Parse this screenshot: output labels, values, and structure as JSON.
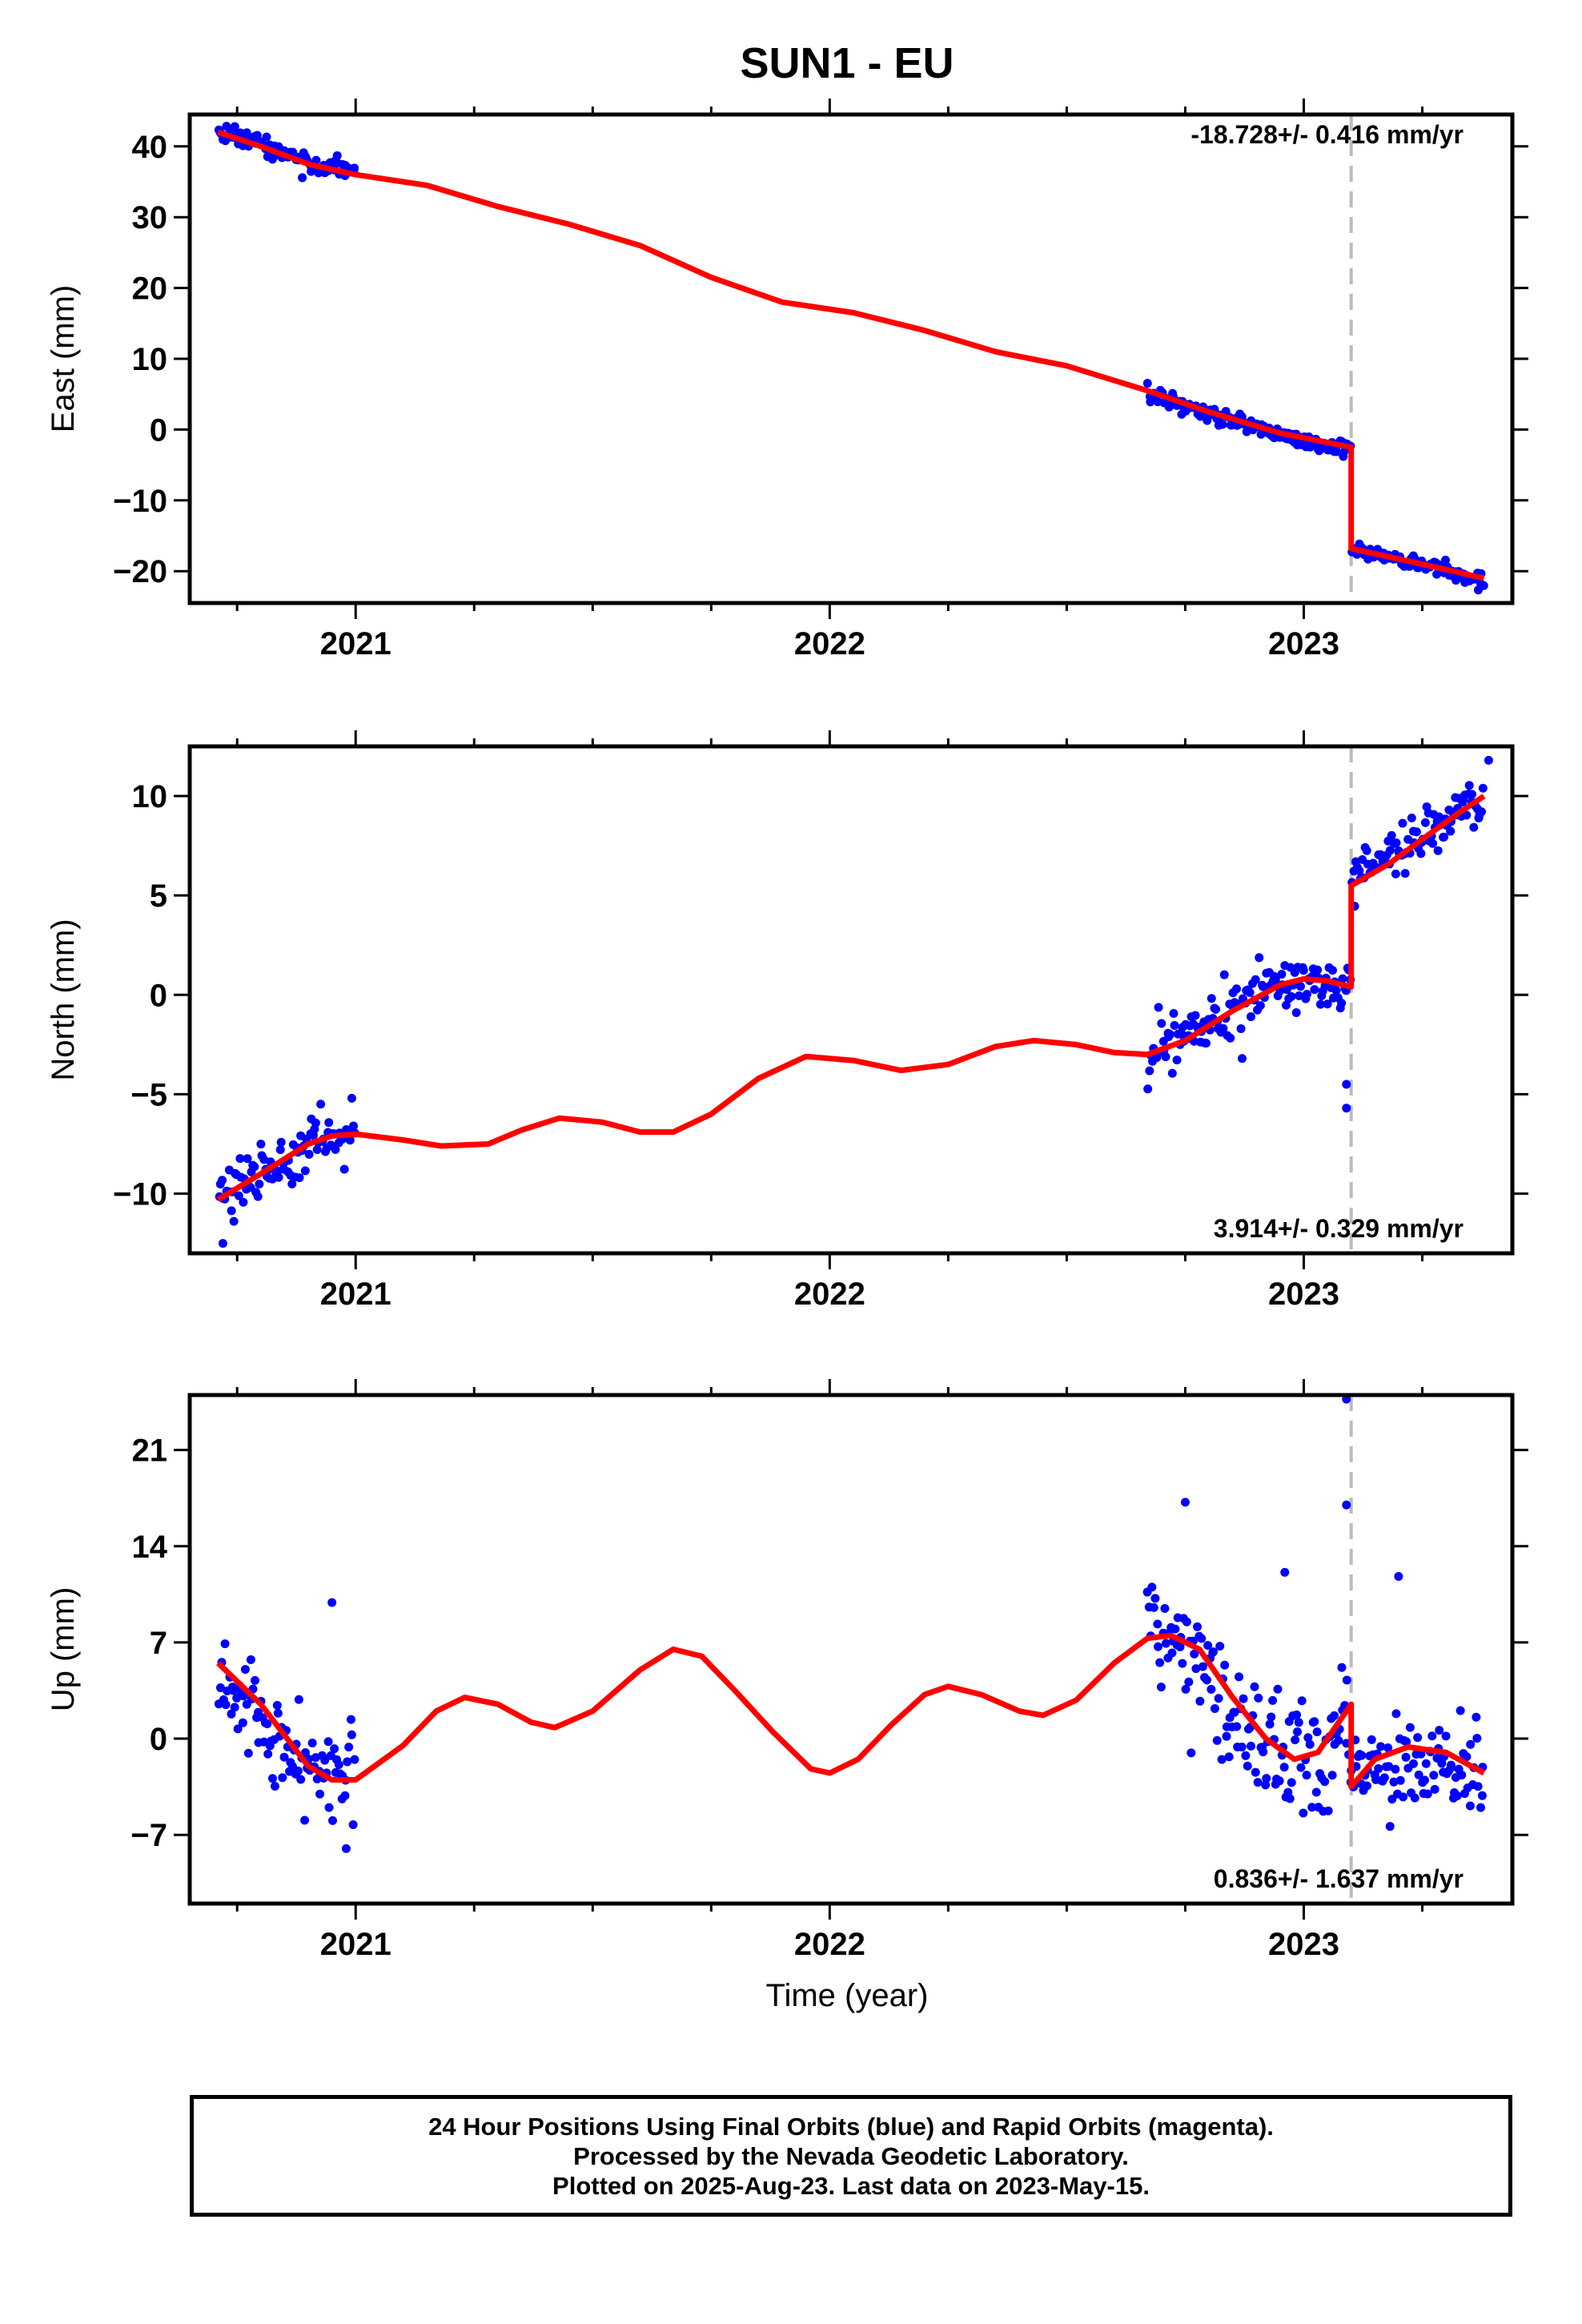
{
  "chart_data": {
    "title": "SUN1 - EU",
    "type": "scatter",
    "xlabel": "Time (year)",
    "xlim": [
      2020.65,
      2023.44
    ],
    "xticks": [
      "2021",
      "2022",
      "2023"
    ],
    "step_epoch": 2023.1,
    "panels": [
      {
        "ylabel": "East (mm)",
        "ylim": [
          -24.5,
          44.5
        ],
        "yticks": [
          {
            "value": 40,
            "label": "40"
          },
          {
            "value": 30,
            "label": "30"
          },
          {
            "value": 20,
            "label": "20"
          },
          {
            "value": 10,
            "label": "10"
          },
          {
            "value": 0,
            "label": "0"
          },
          {
            "value": -10,
            "label": "−10"
          },
          {
            "value": -20,
            "label": "−20"
          }
        ],
        "rate_text": "-18.728+/- 0.416 mm/yr",
        "rate_position": "top-right",
        "series": [
          {
            "kind": "points",
            "color": "#0000ff",
            "segments": [
              {
                "x_start": 2020.71,
                "x_end": 2021.0,
                "trend": [
                  [
                    2020.71,
                    42.6
                  ],
                  [
                    2020.8,
                    40.5
                  ],
                  [
                    2020.9,
                    37.5
                  ],
                  [
                    2021.0,
                    36.5
                  ]
                ],
                "noise": 1.3
              },
              {
                "x_start": 2022.67,
                "x_end": 2023.1,
                "trend": [
                  [
                    2022.67,
                    5.0
                  ],
                  [
                    2022.8,
                    2.3
                  ],
                  [
                    2022.95,
                    -0.8
                  ],
                  [
                    2023.1,
                    -2.8
                  ]
                ],
                "noise": 1.1
              },
              {
                "x_start": 2023.1,
                "x_end": 2023.38,
                "trend": [
                  [
                    2023.1,
                    -16.8
                  ],
                  [
                    2023.25,
                    -19.2
                  ],
                  [
                    2023.38,
                    -21.5
                  ]
                ],
                "noise": 1.1
              }
            ],
            "outliers": []
          },
          {
            "kind": "model",
            "color": "#ff0000",
            "points": [
              [
                2020.71,
                42.0
              ],
              [
                2020.8,
                40.0
              ],
              [
                2020.9,
                37.5
              ],
              [
                2021.0,
                36.0
              ],
              [
                2021.15,
                34.5
              ],
              [
                2021.3,
                31.5
              ],
              [
                2021.45,
                29.0
              ],
              [
                2021.6,
                26.0
              ],
              [
                2021.75,
                21.5
              ],
              [
                2021.9,
                18.0
              ],
              [
                2022.05,
                16.5
              ],
              [
                2022.2,
                14.0
              ],
              [
                2022.35,
                11.0
              ],
              [
                2022.5,
                9.0
              ],
              [
                2022.67,
                5.5
              ],
              [
                2022.8,
                2.5
              ],
              [
                2022.95,
                -0.5
              ],
              [
                2023.1,
                -2.5
              ],
              [
                2023.1,
                -16.8
              ],
              [
                2023.25,
                -19.0
              ],
              [
                2023.38,
                -21.0
              ]
            ]
          }
        ]
      },
      {
        "ylabel": "North (mm)",
        "ylim": [
          -13.0,
          12.5
        ],
        "yticks": [
          {
            "value": 10,
            "label": "10"
          },
          {
            "value": 5,
            "label": "5"
          },
          {
            "value": 0,
            "label": "0"
          },
          {
            "value": -5,
            "label": "−5"
          },
          {
            "value": -10,
            "label": "−10"
          }
        ],
        "rate_text": "3.914+/- 0.329 mm/yr",
        "rate_position": "bottom-right",
        "series": [
          {
            "kind": "points",
            "color": "#0000ff",
            "segments": [
              {
                "x_start": 2020.71,
                "x_end": 2021.0,
                "trend": [
                  [
                    2020.71,
                    -10.2
                  ],
                  [
                    2020.8,
                    -9.0
                  ],
                  [
                    2020.9,
                    -7.5
                  ],
                  [
                    2021.0,
                    -6.8
                  ]
                ],
                "noise": 1.3
              },
              {
                "x_start": 2022.67,
                "x_end": 2023.1,
                "trend": [
                  [
                    2022.67,
                    -2.9
                  ],
                  [
                    2022.8,
                    -1.2
                  ],
                  [
                    2022.95,
                    0.5
                  ],
                  [
                    2023.1,
                    0.5
                  ]
                ],
                "noise": 1.3
              },
              {
                "x_start": 2023.1,
                "x_end": 2023.38,
                "trend": [
                  [
                    2023.1,
                    5.6
                  ],
                  [
                    2023.25,
                    8.0
                  ],
                  [
                    2023.38,
                    10.1
                  ]
                ],
                "noise": 1.3
              }
            ],
            "outliers": [
              [
                2023.09,
                -4.5
              ],
              [
                2023.09,
                -5.7
              ],
              [
                2020.72,
                -12.5
              ],
              [
                2023.39,
                11.8
              ],
              [
                2022.87,
                -3.2
              ]
            ]
          },
          {
            "kind": "model",
            "color": "#ff0000",
            "points": [
              [
                2020.71,
                -10.3
              ],
              [
                2020.8,
                -9.0
              ],
              [
                2020.9,
                -7.5
              ],
              [
                2020.95,
                -7.1
              ],
              [
                2021.0,
                -7.0
              ],
              [
                2021.1,
                -7.3
              ],
              [
                2021.18,
                -7.6
              ],
              [
                2021.28,
                -7.5
              ],
              [
                2021.35,
                -6.8
              ],
              [
                2021.43,
                -6.2
              ],
              [
                2021.52,
                -6.4
              ],
              [
                2021.6,
                -6.9
              ],
              [
                2021.67,
                -6.9
              ],
              [
                2021.75,
                -6.0
              ],
              [
                2021.85,
                -4.2
              ],
              [
                2021.95,
                -3.1
              ],
              [
                2022.05,
                -3.3
              ],
              [
                2022.15,
                -3.8
              ],
              [
                2022.25,
                -3.5
              ],
              [
                2022.35,
                -2.6
              ],
              [
                2022.43,
                -2.3
              ],
              [
                2022.52,
                -2.5
              ],
              [
                2022.6,
                -2.9
              ],
              [
                2022.67,
                -3.0
              ],
              [
                2022.75,
                -2.3
              ],
              [
                2022.85,
                -0.8
              ],
              [
                2022.95,
                0.5
              ],
              [
                2023.0,
                0.8
              ],
              [
                2023.05,
                0.7
              ],
              [
                2023.1,
                0.4
              ],
              [
                2023.1,
                5.5
              ],
              [
                2023.18,
                6.6
              ],
              [
                2023.26,
                8.0
              ],
              [
                2023.33,
                9.2
              ],
              [
                2023.38,
                10.0
              ]
            ]
          }
        ]
      },
      {
        "ylabel": "Up (mm)",
        "ylim": [
          -12.0,
          25.0
        ],
        "yticks": [
          {
            "value": 21,
            "label": "21"
          },
          {
            "value": 14,
            "label": "14"
          },
          {
            "value": 7,
            "label": "7"
          },
          {
            "value": 0,
            "label": "0"
          },
          {
            "value": -7,
            "label": "−7"
          }
        ],
        "rate_text": "0.836+/- 1.637 mm/yr",
        "rate_position": "bottom-right",
        "series": [
          {
            "kind": "points",
            "color": "#0000ff",
            "segments": [
              {
                "x_start": 2020.71,
                "x_end": 2021.0,
                "trend": [
                  [
                    2020.71,
                    5.0
                  ],
                  [
                    2020.8,
                    2.0
                  ],
                  [
                    2020.9,
                    -2.5
                  ],
                  [
                    2021.0,
                    -2.5
                  ]
                ],
                "noise": 3.2
              },
              {
                "x_start": 2022.67,
                "x_end": 2023.1,
                "trend": [
                  [
                    2022.67,
                    9.0
                  ],
                  [
                    2022.75,
                    7.0
                  ],
                  [
                    2022.85,
                    0.5
                  ],
                  [
                    2023.0,
                    -2.0
                  ],
                  [
                    2023.1,
                    0.0
                  ]
                ],
                "noise": 4.0
              },
              {
                "x_start": 2023.1,
                "x_end": 2023.38,
                "trend": [
                  [
                    2023.1,
                    -2.5
                  ],
                  [
                    2023.25,
                    -1.0
                  ],
                  [
                    2023.38,
                    -2.5
                  ]
                ],
                "noise": 3.2
              }
            ],
            "outliers": [
              [
                2023.09,
                24.7
              ],
              [
                2023.09,
                17.0
              ],
              [
                2022.75,
                17.2
              ],
              [
                2020.95,
                9.9
              ],
              [
                2020.98,
                -8.0
              ],
              [
                2022.96,
                12.1
              ],
              [
                2023.2,
                11.8
              ]
            ]
          },
          {
            "kind": "model",
            "color": "#ff0000",
            "points": [
              [
                2020.71,
                5.5
              ],
              [
                2020.8,
                2.5
              ],
              [
                2020.9,
                -2.0
              ],
              [
                2020.95,
                -3.0
              ],
              [
                2021.0,
                -3.0
              ],
              [
                2021.1,
                -0.5
              ],
              [
                2021.17,
                2.0
              ],
              [
                2021.23,
                3.0
              ],
              [
                2021.3,
                2.5
              ],
              [
                2021.37,
                1.2
              ],
              [
                2021.42,
                0.8
              ],
              [
                2021.5,
                2.0
              ],
              [
                2021.6,
                5.0
              ],
              [
                2021.67,
                6.5
              ],
              [
                2021.73,
                6.0
              ],
              [
                2021.8,
                3.5
              ],
              [
                2021.88,
                0.5
              ],
              [
                2021.96,
                -2.2
              ],
              [
                2022.0,
                -2.5
              ],
              [
                2022.06,
                -1.5
              ],
              [
                2022.13,
                1.0
              ],
              [
                2022.2,
                3.2
              ],
              [
                2022.25,
                3.8
              ],
              [
                2022.32,
                3.2
              ],
              [
                2022.4,
                2.0
              ],
              [
                2022.45,
                1.7
              ],
              [
                2022.52,
                2.8
              ],
              [
                2022.6,
                5.5
              ],
              [
                2022.67,
                7.3
              ],
              [
                2022.72,
                7.5
              ],
              [
                2022.78,
                6.5
              ],
              [
                2022.85,
                3.0
              ],
              [
                2022.92,
                0.0
              ],
              [
                2022.98,
                -1.5
              ],
              [
                2023.03,
                -1.0
              ],
              [
                2023.1,
                2.5
              ],
              [
                2023.1,
                -3.5
              ],
              [
                2023.15,
                -1.5
              ],
              [
                2023.22,
                -0.6
              ],
              [
                2023.3,
                -1.0
              ],
              [
                2023.38,
                -2.5
              ]
            ]
          }
        ]
      }
    ],
    "footer_lines": [
      "24 Hour Positions Using Final Orbits (blue) and Rapid Orbits (magenta).",
      "Processed by the Nevada Geodetic Laboratory.",
      "Plotted on 2025-Aug-23. Last data on 2023-May-15."
    ]
  }
}
